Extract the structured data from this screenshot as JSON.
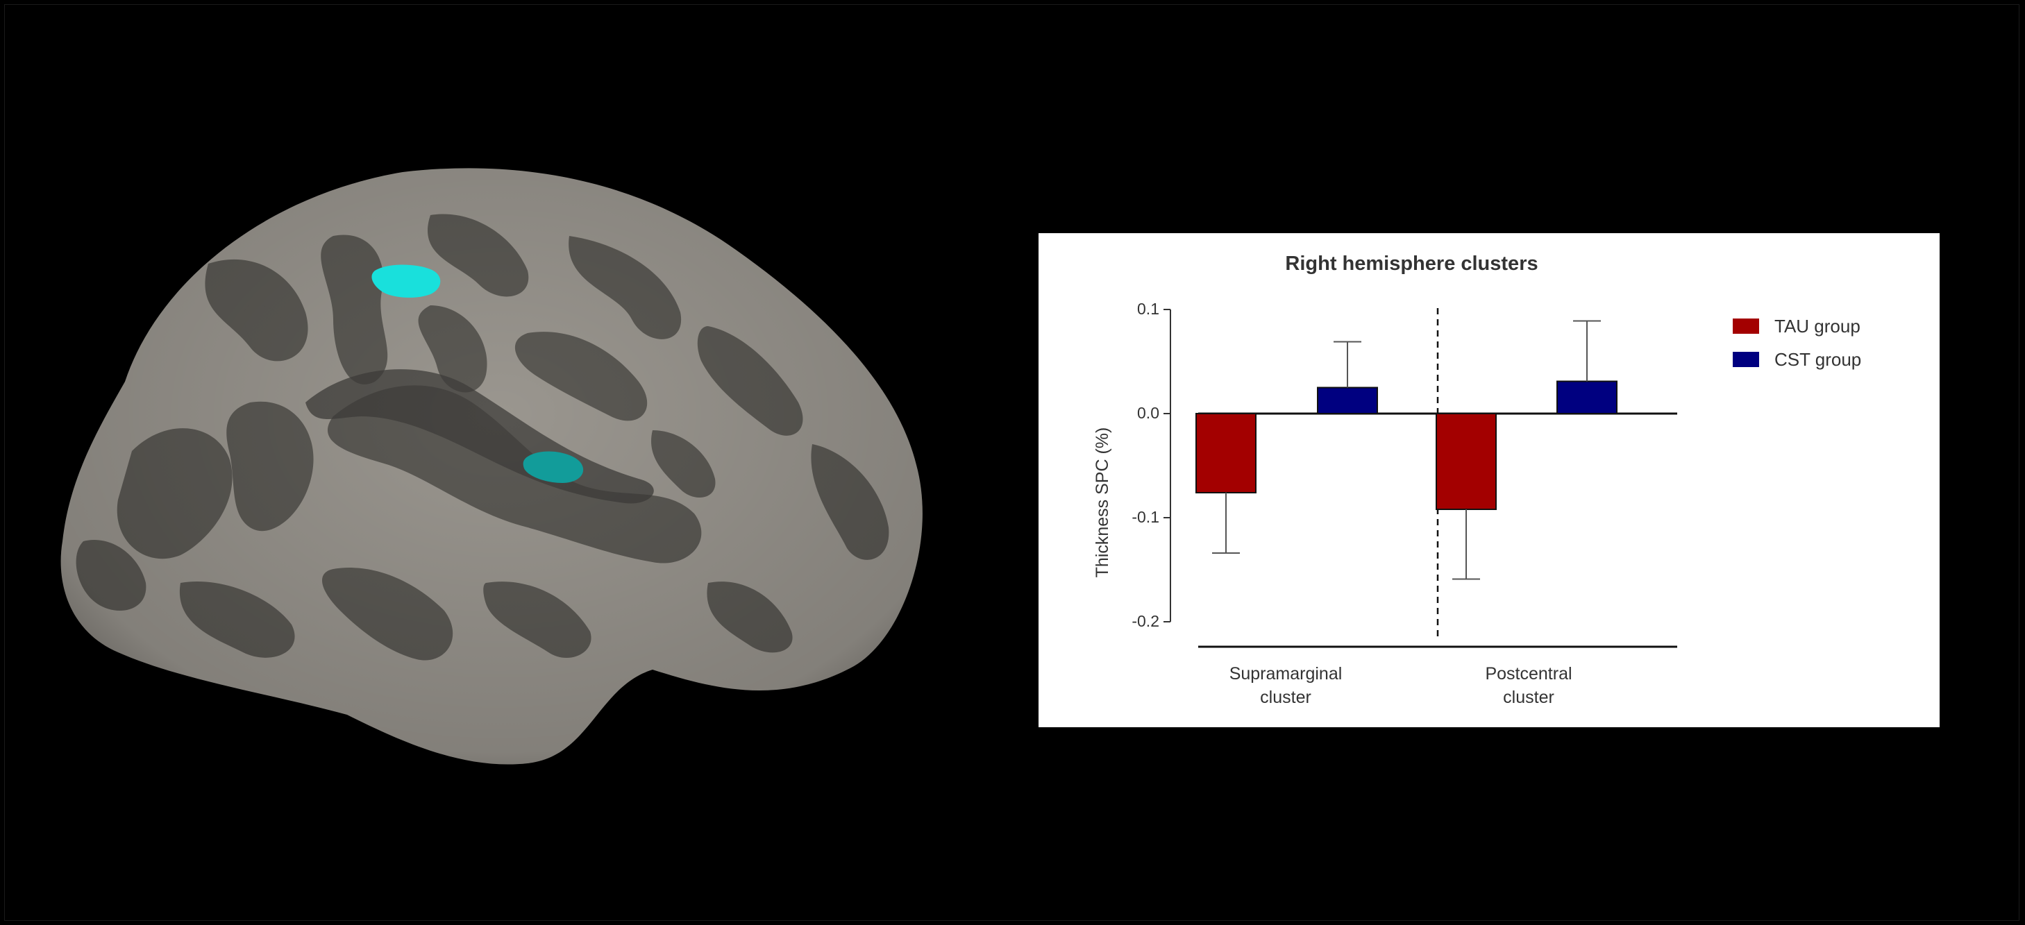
{
  "figure": {
    "background": "#000000",
    "brain_view": {
      "icon": "brain-cortical-surface",
      "gyri_color": "#9a968f",
      "sulci_color": "#5b5954",
      "cluster_color": "#19e0dc"
    }
  },
  "chart_data": {
    "type": "bar",
    "title": "Right hemisphere clusters",
    "xlabel": "",
    "ylabel": "Thickness SPC  (%)",
    "ylim": [
      -0.2,
      0.1
    ],
    "yticks": [
      "0.1",
      "0.0",
      "-0.1",
      "-0.2"
    ],
    "categories": [
      "Supramarginal cluster",
      "Postcentral cluster"
    ],
    "category_lines": [
      [
        "Supramarginal",
        "cluster"
      ],
      [
        "Postcentral",
        "cluster"
      ]
    ],
    "series": [
      {
        "name": "TAU group",
        "color": "#a30000",
        "values": [
          -0.076,
          -0.092
        ],
        "error": [
          0.058,
          0.067
        ]
      },
      {
        "name": "CST group",
        "color": "#000080",
        "values": [
          0.025,
          0.031
        ],
        "error": [
          0.044,
          0.058
        ]
      }
    ],
    "legend_position": "right",
    "grid": false
  }
}
